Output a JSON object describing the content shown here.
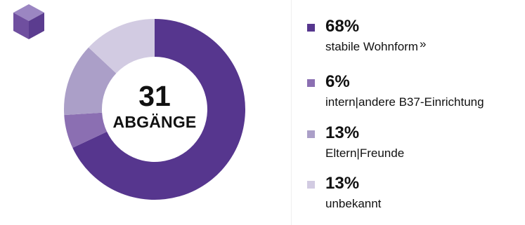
{
  "colors": {
    "stabile": "#56368e",
    "intern": "#8b6fb2",
    "eltern": "#ab9fc8",
    "unbekannt": "#d2cbe2",
    "logo_top": "#9b86c2",
    "logo_left": "#6f4f9f",
    "logo_right": "#5b3c8f"
  },
  "logo": {
    "icon": "cube-icon"
  },
  "center": {
    "count": "31",
    "label": "ABGÄNGE"
  },
  "chart_data": {
    "type": "pie",
    "donut": true,
    "total": 31,
    "slices": [
      {
        "label": "stabile Wohnform",
        "percent": 68,
        "color": "#56368e"
      },
      {
        "label": "intern|andere B37-Einrichtung",
        "percent": 6,
        "color": "#8b6fb2"
      },
      {
        "label": "Eltern|Freunde",
        "percent": 13,
        "color": "#ab9fc8"
      },
      {
        "label": "unbekannt",
        "percent": 13,
        "color": "#d2cbe2"
      }
    ]
  },
  "legend": [
    {
      "percent": "68%",
      "label": "stabile Wohnform",
      "footnote": "»"
    },
    {
      "percent": "6%",
      "label": "intern|andere B37-Einrichtung"
    },
    {
      "percent": "13%",
      "label": "Eltern|Freunde"
    },
    {
      "percent": "13%",
      "label": "unbekannt"
    }
  ]
}
